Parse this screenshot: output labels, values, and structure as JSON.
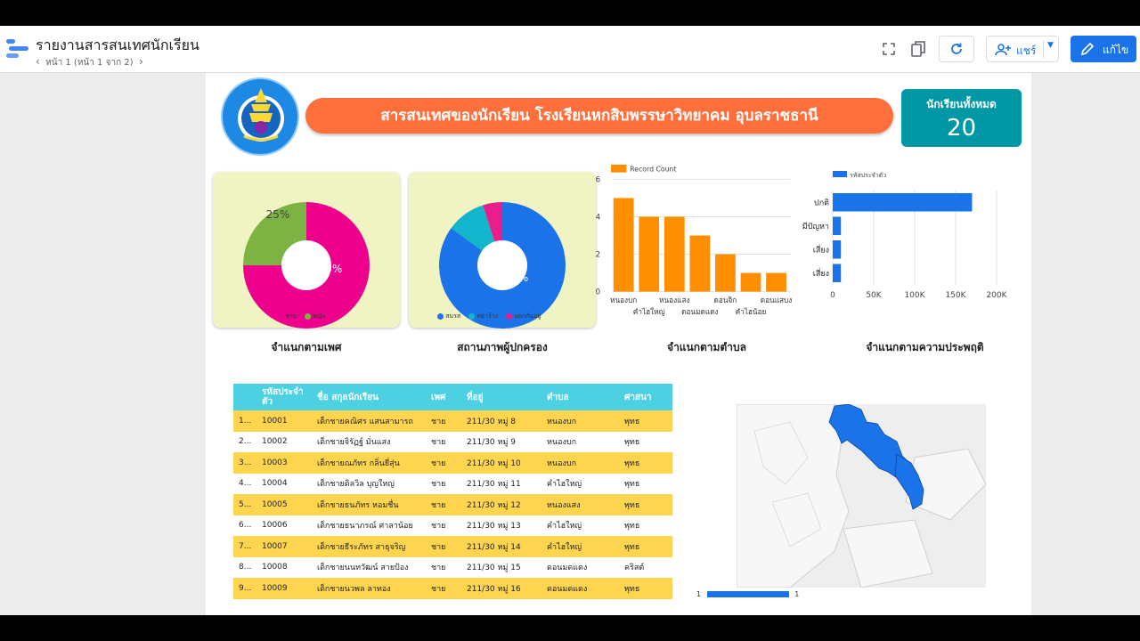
{
  "app": {
    "title": "รายงานสารสนเทศนักเรียน",
    "pager": "หน้า 1 (หน้า 1 จาก 2)",
    "share_label": "แชร์",
    "edit_label": "แก้ไข"
  },
  "report": {
    "banner": "สารสนเทศของนักเรียน โรงเรียนหกสิบพรรษาวิทยาคม อุบลราชธานี",
    "total_label": "นักเรียนทั้งหมด",
    "total_value": "20"
  },
  "colors": {
    "male": "#ec008c",
    "female": "#7cb342",
    "married": "#1a73e8",
    "divorced": "#12b5cb",
    "separated": "#e91e8c",
    "bar": "#ff8f00",
    "hbar": "#1a73e8",
    "banner": "#ff6f3c",
    "table_header": "#4dd0e1",
    "table_alt": "#ffd54f"
  },
  "gender_chart": {
    "caption": "จำแนกตามเพศ",
    "legend": [
      {
        "label": "ชาย"
      },
      {
        "label": "หญิง"
      }
    ],
    "labels": [
      "75%",
      "25%"
    ]
  },
  "parent_chart": {
    "caption": "สถานภาพผู้ปกครอง",
    "legend": [
      {
        "label": "สมรส"
      },
      {
        "label": "หย่าร้าง"
      },
      {
        "label": "แยกกันอยู่"
      }
    ],
    "labels": [
      "85%"
    ]
  },
  "district_chart": {
    "caption": "จำแนกตามตำบล",
    "legend": "Record Count",
    "tick_labels": [
      "0",
      "2",
      "4",
      "6"
    ],
    "x_labels_top": [
      "หนองบก",
      "หนองแสง",
      "ดอนจิก",
      "ดอนแสบง"
    ],
    "x_labels_bottom": [
      "คำไฮใหญ่",
      "ดอนมดแดง",
      "คำไฮน้อย"
    ]
  },
  "behavior_chart": {
    "caption": "จำแนกตามความประพฤติ",
    "legend": "รหัสประจำตัว",
    "categories": [
      "ปกติ",
      "มีปัญหา",
      "เสี่ยง",
      "เสี่ยง"
    ],
    "tick_labels": [
      "0",
      "50K",
      "100K",
      "150K",
      "200K"
    ]
  },
  "chart_data": [
    {
      "type": "pie",
      "categories": [
        "ชาย",
        "หญิง"
      ],
      "values": [
        75,
        25
      ]
    },
    {
      "type": "pie",
      "categories": [
        "สมรส",
        "หย่าร้าง",
        "แยกกันอยู่"
      ],
      "values": [
        85,
        10,
        5
      ]
    },
    {
      "type": "bar",
      "categories": [
        "หนองบก",
        "คำไฮใหญ่",
        "หนองแสง",
        "ดอนมดแดง",
        "ดอนจิก",
        "คำไฮน้อย",
        "ดอนแสบง"
      ],
      "series": [
        {
          "name": "Record Count",
          "values": [
            5,
            4,
            4,
            3,
            2,
            1,
            1
          ]
        }
      ],
      "ylim": [
        0,
        6
      ]
    },
    {
      "type": "bar",
      "orientation": "horizontal",
      "categories": [
        "ปกติ",
        "มีปัญหา",
        "เสี่ยง",
        "เสี่ยง"
      ],
      "series": [
        {
          "name": "รหัสประจำตัว",
          "values": [
            170000,
            10005,
            10006,
            10008
          ]
        }
      ],
      "xlim": [
        0,
        200000
      ]
    }
  ],
  "table": {
    "headers": [
      "รหัสประจำตัว",
      "ชื่อ สกุลนักเรียน",
      "เพศ",
      "ที่อยู่",
      "ตำบล",
      "ศาสนา"
    ],
    "rows": [
      [
        "1...",
        "10001",
        "เด็กชายคณิศร แสนสามารถ",
        "ชาย",
        "211/30 หมู่ 8",
        "หนองบก",
        "พุทธ"
      ],
      [
        "2...",
        "10002",
        "เด็กชายจิรัฏฐ์ มั่นแสง",
        "ชาย",
        "211/30 หมู่ 9",
        "หนองบก",
        "พุทธ"
      ],
      [
        "3...",
        "10003",
        "เด็กชายณภัทร กลิ่นยี่สุ่น",
        "ชาย",
        "211/30 หมู่ 10",
        "หนองบก",
        "พุทธ"
      ],
      [
        "4...",
        "10004",
        "เด็กชายดิลวิล บุญใหญ่",
        "ชาย",
        "211/30 หมู่ 11",
        "คำไฮใหญ่",
        "พุทธ"
      ],
      [
        "5...",
        "10005",
        "เด็กชายธนภัทร หอมชื่น",
        "ชาย",
        "211/30 หมู่ 12",
        "หนองแสง",
        "พุทธ"
      ],
      [
        "6...",
        "10006",
        "เด็กชายธนาภรณ์ ศาลาน้อย",
        "ชาย",
        "211/30 หมู่ 13",
        "คำไฮใหญ่",
        "พุทธ"
      ],
      [
        "7...",
        "10007",
        "เด็กชายธีระภัทร สาธุจริญ",
        "ชาย",
        "211/30 หมู่ 14",
        "คำไฮใหญ่",
        "พุทธ"
      ],
      [
        "8...",
        "10008",
        "เด็กชายนนทวัฒน์ สายป้อง",
        "ชาย",
        "211/30 หมู่ 15",
        "ดอนมดแดง",
        "คริสต์"
      ],
      [
        "9...",
        "10009",
        "เด็กชายนวพล ลาทอง",
        "ชาย",
        "211/30 หมู่ 16",
        "ดอนมดแดง",
        "พุทธ"
      ]
    ]
  },
  "map": {
    "legend_min": "1",
    "legend_max": "1"
  }
}
